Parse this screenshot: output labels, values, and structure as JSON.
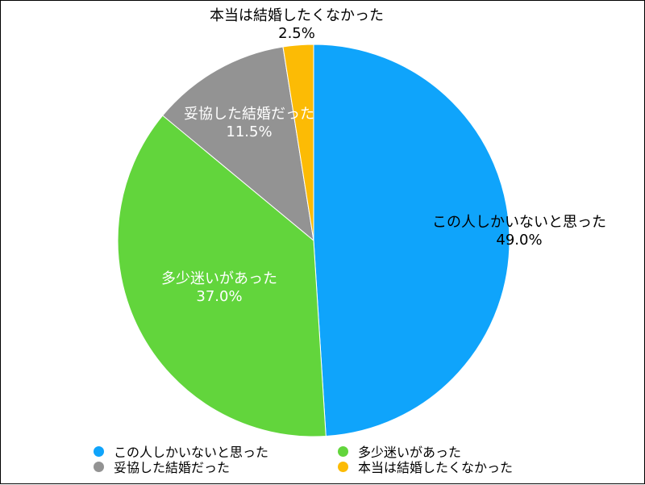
{
  "chart_data": {
    "type": "pie",
    "slices": [
      {
        "label": "この人しかいないと思った",
        "value": 49.0,
        "display": "49.0%",
        "color": "#0fa4fb"
      },
      {
        "label": "多少迷いがあった",
        "value": 37.0,
        "display": "37.0%",
        "color": "#62d53c"
      },
      {
        "label": "妥協した結婚だった",
        "value": 11.5,
        "display": "11.5%",
        "color": "#939393"
      },
      {
        "label": "本当は結婚したくなかった",
        "value": 2.5,
        "display": "2.5%",
        "color": "#fcbb05"
      }
    ],
    "legend_position": "bottom",
    "start_angle": "12 o'clock",
    "direction": "clockwise"
  }
}
